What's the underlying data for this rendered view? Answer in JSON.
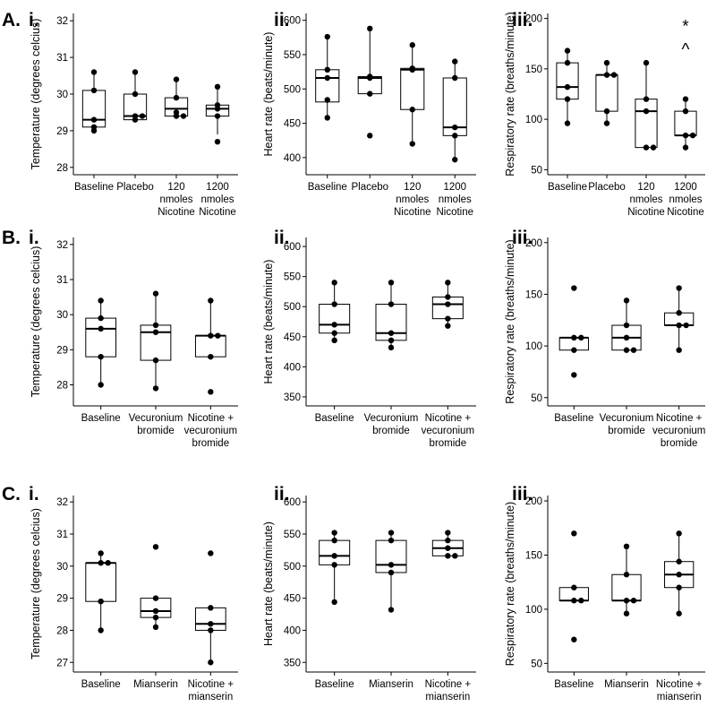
{
  "figure": {
    "rows": [
      {
        "letter": "A.",
        "panels": [
          0,
          1,
          2
        ]
      },
      {
        "letter": "B.",
        "panels": [
          3,
          4,
          5
        ]
      },
      {
        "letter": "C.",
        "panels": [
          6,
          7,
          8
        ]
      }
    ]
  },
  "chart_data": [
    {
      "type": "box",
      "panel": "i.",
      "ylabel": "Temperature (degrees celcius)",
      "ylim": [
        27.8,
        32.2
      ],
      "yticks": [
        28,
        29,
        30,
        31,
        32
      ],
      "categories": [
        [
          "Baseline"
        ],
        [
          "Placebo"
        ],
        [
          "120",
          "nmoles",
          "Nicotine"
        ],
        [
          "1200",
          "nmoles",
          "Nicotine"
        ]
      ],
      "groups": [
        {
          "q1": 29.1,
          "median": 29.3,
          "q3": 30.1,
          "whisker_low": 29.1,
          "whisker_high": 30.6,
          "points": [
            29.0,
            29.1,
            29.3,
            30.1,
            30.6
          ]
        },
        {
          "q1": 29.3,
          "median": 29.4,
          "q3": 30.0,
          "whisker_low": 29.3,
          "whisker_high": 30.6,
          "points": [
            29.3,
            29.4,
            29.4,
            30.0,
            30.6
          ]
        },
        {
          "q1": 29.4,
          "median": 29.6,
          "q3": 29.9,
          "whisker_low": 29.4,
          "whisker_high": 30.4,
          "points": [
            29.4,
            29.4,
            29.5,
            29.9,
            30.4
          ]
        },
        {
          "q1": 29.4,
          "median": 29.6,
          "q3": 29.7,
          "whisker_low": 28.9,
          "whisker_high": 30.2,
          "points": [
            28.7,
            29.4,
            29.6,
            29.7,
            30.2
          ]
        }
      ],
      "annotations": []
    },
    {
      "type": "box",
      "panel": "ii.",
      "ylabel": "Heart rate (beats/minute)",
      "ylim": [
        375,
        610
      ],
      "yticks": [
        400,
        450,
        500,
        550,
        600
      ],
      "categories": [
        [
          "Baseline"
        ],
        [
          "Placebo"
        ],
        [
          "120",
          "nmoles",
          "Nicotine"
        ],
        [
          "1200",
          "nmoles",
          "Nicotine"
        ]
      ],
      "groups": [
        {
          "q1": 481,
          "median": 516,
          "q3": 528,
          "whisker_low": 458,
          "whisker_high": 576,
          "points": [
            458,
            484,
            516,
            528,
            576
          ]
        },
        {
          "q1": 493,
          "median": 516,
          "q3": 518,
          "whisker_low": 493,
          "whisker_high": 588,
          "points": [
            432,
            493,
            516,
            518,
            588
          ]
        },
        {
          "q1": 470,
          "median": 528,
          "q3": 530,
          "whisker_low": 420,
          "whisker_high": 564,
          "points": [
            420,
            470,
            528,
            530,
            564
          ]
        },
        {
          "q1": 432,
          "median": 444,
          "q3": 516,
          "whisker_low": 397,
          "whisker_high": 540,
          "points": [
            397,
            432,
            444,
            516,
            540
          ]
        }
      ],
      "annotations": []
    },
    {
      "type": "box",
      "panel": "iii.",
      "ylabel": "Respiratory rate (breaths/minute)",
      "ylim": [
        45,
        205
      ],
      "yticks": [
        50,
        100,
        150,
        200
      ],
      "categories": [
        [
          "Baseline"
        ],
        [
          "Placebo"
        ],
        [
          "120",
          "nmoles",
          "Nicotine"
        ],
        [
          "1200",
          "nmoles",
          "Nicotine"
        ]
      ],
      "groups": [
        {
          "q1": 120,
          "median": 132,
          "q3": 156,
          "whisker_low": 96,
          "whisker_high": 168,
          "points": [
            96,
            120,
            132,
            156,
            168
          ]
        },
        {
          "q1": 108,
          "median": 144,
          "q3": 144,
          "whisker_low": 96,
          "whisker_high": 156,
          "points": [
            96,
            108,
            144,
            144,
            156
          ]
        },
        {
          "q1": 72,
          "median": 108,
          "q3": 120,
          "whisker_low": 72,
          "whisker_high": 156,
          "points": [
            72,
            72,
            108,
            120,
            156
          ]
        },
        {
          "q1": 84,
          "median": 84,
          "q3": 108,
          "whisker_low": 72,
          "whisker_high": 120,
          "points": [
            72,
            84,
            84,
            108,
            120
          ]
        }
      ],
      "annotations": [
        {
          "group": 3,
          "text": "*",
          "y": 192
        },
        {
          "group": 3,
          "text": "^",
          "y": 169
        }
      ]
    },
    {
      "type": "box",
      "panel": "i.",
      "ylabel": "Temperature (degrees celcius)",
      "ylim": [
        27.4,
        32.2
      ],
      "yticks": [
        28,
        29,
        30,
        31,
        32
      ],
      "categories": [
        [
          "Baseline"
        ],
        [
          "Vecuronium",
          "bromide"
        ],
        [
          "Nicotine +",
          "vecuronium",
          "bromide"
        ]
      ],
      "groups": [
        {
          "q1": 28.8,
          "median": 29.6,
          "q3": 29.9,
          "whisker_low": 28.0,
          "whisker_high": 30.4,
          "points": [
            28.0,
            28.8,
            29.6,
            29.9,
            30.4
          ]
        },
        {
          "q1": 28.7,
          "median": 29.5,
          "q3": 29.7,
          "whisker_low": 27.9,
          "whisker_high": 30.6,
          "points": [
            27.9,
            28.7,
            29.5,
            29.7,
            30.6
          ]
        },
        {
          "q1": 28.8,
          "median": 29.4,
          "q3": 29.4,
          "whisker_low": 28.8,
          "whisker_high": 30.4,
          "points": [
            27.8,
            28.8,
            29.4,
            29.4,
            30.4
          ]
        }
      ],
      "annotations": []
    },
    {
      "type": "box",
      "panel": "ii.",
      "ylabel": "Heart rate (beats/minute)",
      "ylim": [
        335,
        615
      ],
      "yticks": [
        350,
        400,
        450,
        500,
        550,
        600
      ],
      "categories": [
        [
          "Baseline"
        ],
        [
          "Vecuronium",
          "bromide"
        ],
        [
          "Nicotine +",
          "vecuronium",
          "bromide"
        ]
      ],
      "groups": [
        {
          "q1": 456,
          "median": 470,
          "q3": 504,
          "whisker_low": 444,
          "whisker_high": 540,
          "points": [
            444,
            456,
            470,
            504,
            540
          ]
        },
        {
          "q1": 444,
          "median": 456,
          "q3": 504,
          "whisker_low": 432,
          "whisker_high": 540,
          "points": [
            432,
            444,
            456,
            504,
            540
          ]
        },
        {
          "q1": 480,
          "median": 504,
          "q3": 516,
          "whisker_low": 468,
          "whisker_high": 540,
          "points": [
            468,
            480,
            504,
            516,
            540
          ]
        }
      ],
      "annotations": []
    },
    {
      "type": "box",
      "panel": "iii.",
      "ylabel": "Respiratory rate (breaths/minute)",
      "ylim": [
        42,
        205
      ],
      "yticks": [
        50,
        100,
        150,
        200
      ],
      "categories": [
        [
          "Baseline"
        ],
        [
          "Vecuronium",
          "bromide"
        ],
        [
          "Nicotine +",
          "vecuronium",
          "bromide"
        ]
      ],
      "groups": [
        {
          "q1": 96,
          "median": 108,
          "q3": 108,
          "whisker_low": 96,
          "whisker_high": 108,
          "points": [
            72,
            96,
            108,
            108,
            156
          ]
        },
        {
          "q1": 96,
          "median": 108,
          "q3": 120,
          "whisker_low": 96,
          "whisker_high": 144,
          "points": [
            96,
            96,
            108,
            120,
            144
          ]
        },
        {
          "q1": 120,
          "median": 120,
          "q3": 132,
          "whisker_low": 96,
          "whisker_high": 156,
          "points": [
            96,
            120,
            120,
            132,
            156
          ]
        }
      ],
      "annotations": []
    },
    {
      "type": "box",
      "panel": "i.",
      "ylabel": "Temperature (degrees celcius)",
      "ylim": [
        26.7,
        32.2
      ],
      "yticks": [
        27,
        28,
        29,
        30,
        31,
        32
      ],
      "categories": [
        [
          "Baseline"
        ],
        [
          "Mianserin"
        ],
        [
          "Nicotine +",
          "mianserin"
        ]
      ],
      "groups": [
        {
          "q1": 28.9,
          "median": 30.1,
          "q3": 30.1,
          "whisker_low": 28.0,
          "whisker_high": 30.4,
          "points": [
            28.0,
            28.9,
            30.1,
            30.1,
            30.4
          ]
        },
        {
          "q1": 28.4,
          "median": 28.6,
          "q3": 29.0,
          "whisker_low": 28.1,
          "whisker_high": 29.0,
          "points": [
            28.1,
            28.4,
            28.6,
            29.0,
            30.6
          ]
        },
        {
          "q1": 28.0,
          "median": 28.2,
          "q3": 28.7,
          "whisker_low": 27.0,
          "whisker_high": 28.7,
          "points": [
            27.0,
            28.0,
            28.2,
            28.7,
            30.4
          ]
        }
      ],
      "annotations": []
    },
    {
      "type": "box",
      "panel": "ii.",
      "ylabel": "Heart rate (beats/minute)",
      "ylim": [
        335,
        610
      ],
      "yticks": [
        350,
        400,
        450,
        500,
        550,
        600
      ],
      "categories": [
        [
          "Baseline"
        ],
        [
          "Mianserin"
        ],
        [
          "Nicotine +",
          "mianserin"
        ]
      ],
      "groups": [
        {
          "q1": 502,
          "median": 516,
          "q3": 540,
          "whisker_low": 444,
          "whisker_high": 552,
          "points": [
            444,
            502,
            516,
            540,
            552
          ]
        },
        {
          "q1": 490,
          "median": 502,
          "q3": 540,
          "whisker_low": 432,
          "whisker_high": 552,
          "points": [
            432,
            490,
            502,
            540,
            552
          ]
        },
        {
          "q1": 516,
          "median": 528,
          "q3": 540,
          "whisker_low": 516,
          "whisker_high": 552,
          "points": [
            516,
            516,
            528,
            540,
            552
          ]
        }
      ],
      "annotations": []
    },
    {
      "type": "box",
      "panel": "iii.",
      "ylabel": "Respiratory rate (breaths/minute)",
      "ylim": [
        42,
        205
      ],
      "yticks": [
        50,
        100,
        150,
        200
      ],
      "categories": [
        [
          "Baseline"
        ],
        [
          "Mianserin"
        ],
        [
          "Nicotine +",
          "mianserin"
        ]
      ],
      "groups": [
        {
          "q1": 108,
          "median": 108,
          "q3": 120,
          "whisker_low": 108,
          "whisker_high": 120,
          "points": [
            72,
            108,
            108,
            120,
            170
          ]
        },
        {
          "q1": 108,
          "median": 108,
          "q3": 132,
          "whisker_low": 96,
          "whisker_high": 158,
          "points": [
            96,
            108,
            108,
            132,
            158
          ]
        },
        {
          "q1": 120,
          "median": 132,
          "q3": 144,
          "whisker_low": 96,
          "whisker_high": 170,
          "points": [
            96,
            120,
            132,
            144,
            170
          ]
        }
      ],
      "annotations": []
    }
  ]
}
